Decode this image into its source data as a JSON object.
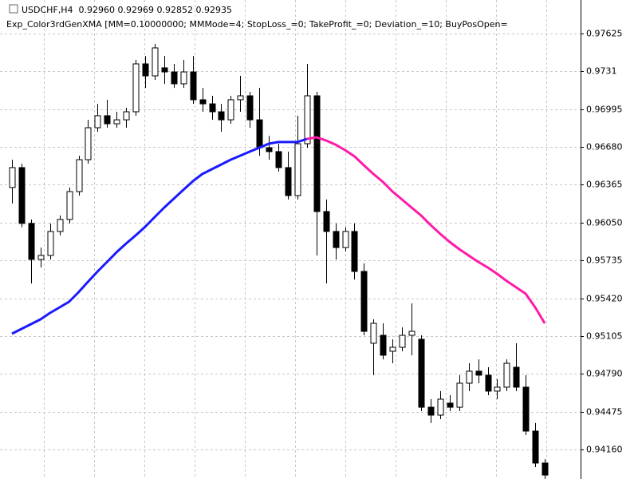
{
  "chart_data": {
    "type": "candlestick",
    "title": "USDCHF,H4  0.92960 0.92969 0.92852 0.92935",
    "subtitle": "Exp_Color3rdGenXMA [MM=0.10000000; MMMode=4; StopLoss_=0; TakeProfit_=0; Deviation_=10; BuyPosOpen=",
    "categories": [
      null,
      null,
      null,
      null,
      null,
      null,
      null,
      null,
      null,
      null,
      null,
      null,
      null,
      null,
      null,
      null,
      null,
      null,
      null,
      null,
      null,
      null,
      null,
      null,
      null,
      null,
      null,
      null,
      null,
      null,
      null,
      null,
      null,
      null,
      null,
      null,
      null,
      null,
      null,
      null,
      null,
      null,
      null,
      null,
      null,
      null,
      null,
      null,
      null,
      null,
      null,
      null,
      null,
      null,
      null,
      null,
      null
    ],
    "open": [
      0.96342,
      0.96508,
      0.96043,
      0.95743,
      0.95776,
      0.95976,
      0.96076,
      0.96308,
      0.96574,
      0.9684,
      0.9694,
      0.96873,
      0.96906,
      0.96973,
      0.97372,
      0.97272,
      0.97339,
      0.97305,
      0.97206,
      0.97305,
      0.97073,
      0.97039,
      0.96973,
      0.96906,
      0.97073,
      0.97106,
      0.96906,
      0.96674,
      0.96641,
      0.96508,
      0.96275,
      0.96707,
      0.97106,
      0.96142,
      0.95976,
      0.95842,
      0.95976,
      0.95643,
      0.95045,
      0.95111,
      0.94978,
      0.95011,
      0.95111,
      0.95078,
      0.94512,
      0.94446,
      0.94546,
      0.94512,
      0.94712,
      0.94812,
      0.94779,
      0.94646,
      0.94679,
      0.94845,
      0.94679,
      0.94313,
      0.94047
    ],
    "high": [
      0.96574,
      0.96541,
      0.96076,
      0.95842,
      0.96043,
      0.96109,
      0.96342,
      0.96607,
      0.96906,
      0.97039,
      0.97073,
      0.96973,
      0.97006,
      0.97405,
      0.97438,
      0.97538,
      0.97438,
      0.97372,
      0.97405,
      0.97438,
      0.97172,
      0.97106,
      0.97039,
      0.97106,
      0.97272,
      0.97139,
      0.97172,
      0.96773,
      0.96707,
      0.96641,
      0.9694,
      0.97372,
      0.97139,
      0.96242,
      0.96043,
      0.9601,
      0.96043,
      0.9571,
      0.95244,
      0.95211,
      0.95078,
      0.95177,
      0.95377,
      0.95111,
      0.94579,
      0.94646,
      0.94612,
      0.94779,
      0.94878,
      0.94911,
      0.94845,
      0.94745,
      0.94911,
      0.95045,
      0.94779,
      0.9438,
      0.9408
    ],
    "low": [
      0.96209,
      0.9601,
      0.95543,
      0.95676,
      0.95743,
      0.95943,
      0.96043,
      0.96275,
      0.96541,
      0.96807,
      0.9684,
      0.9684,
      0.9684,
      0.9694,
      0.97172,
      0.97239,
      0.97206,
      0.97172,
      0.97172,
      0.97039,
      0.96973,
      0.96906,
      0.96807,
      0.96873,
      0.96973,
      0.9684,
      0.96607,
      0.96574,
      0.96475,
      0.96242,
      0.96242,
      0.96674,
      0.95776,
      0.95543,
      0.95743,
      0.95809,
      0.95576,
      0.95111,
      0.94779,
      0.94911,
      0.94878,
      0.94978,
      0.94945,
      0.94479,
      0.9438,
      0.94413,
      0.94479,
      0.94479,
      0.94646,
      0.94712,
      0.94612,
      0.94579,
      0.94646,
      0.94646,
      0.9428,
      0.94014,
      0.93914
    ],
    "close": [
      0.96508,
      0.96043,
      0.95743,
      0.95776,
      0.95976,
      0.96076,
      0.96308,
      0.96574,
      0.9684,
      0.9694,
      0.96873,
      0.96906,
      0.96973,
      0.97372,
      0.97272,
      0.97505,
      0.97305,
      0.97206,
      0.97305,
      0.97073,
      0.97039,
      0.96973,
      0.96906,
      0.97073,
      0.97106,
      0.96906,
      0.96674,
      0.96641,
      0.96508,
      0.96275,
      0.96707,
      0.97106,
      0.96142,
      0.95976,
      0.95842,
      0.95976,
      0.95643,
      0.95144,
      0.95211,
      0.94945,
      0.95011,
      0.95111,
      0.95144,
      0.94512,
      0.94446,
      0.94579,
      0.94512,
      0.94712,
      0.94812,
      0.94779,
      0.94646,
      0.94679,
      0.94878,
      0.94679,
      0.94313,
      0.94047,
      0.93947
    ],
    "series": [
      {
        "color": "#1a1aff",
        "values": [
          0.95124,
          0.95164,
          0.95204,
          0.95244,
          0.95297,
          0.95344,
          0.9539,
          0.9547,
          0.95557,
          0.95643,
          0.95723,
          0.95803,
          0.95876,
          0.95943,
          0.96015,
          0.96095,
          0.96175,
          0.96248,
          0.96321,
          0.96394,
          0.96454,
          0.96494,
          0.96534,
          0.96574,
          0.96607,
          0.96641,
          0.96674,
          0.96707,
          0.96721,
          0.96721,
          0.96721,
          0.96747,
          null,
          null,
          null,
          null,
          null,
          null,
          null,
          null,
          null,
          null,
          null,
          null,
          null,
          null,
          null,
          null,
          null,
          null,
          null,
          null,
          null,
          null,
          null,
          null,
          null
        ]
      },
      {
        "color": "#ff1aa8",
        "values": [
          null,
          null,
          null,
          null,
          null,
          null,
          null,
          null,
          null,
          null,
          null,
          null,
          null,
          null,
          null,
          null,
          null,
          null,
          null,
          null,
          null,
          null,
          null,
          null,
          null,
          null,
          null,
          null,
          null,
          null,
          null,
          0.96747,
          0.9676,
          0.96734,
          0.967,
          0.96654,
          0.96601,
          0.96527,
          0.96454,
          0.96388,
          0.96308,
          0.96242,
          0.96175,
          0.96109,
          0.9603,
          0.95956,
          0.95889,
          0.95829,
          0.95776,
          0.95723,
          0.95676,
          0.95623,
          0.95563,
          0.9551,
          0.95457,
          0.95344,
          0.95211
        ]
      }
    ],
    "ylim": [
      0.93914,
      0.97904
    ],
    "yticks": [
      0.97625,
      0.9731,
      0.96995,
      {
        "value": 0.9668,
        "label": "0.96680"
      },
      0.96365,
      {
        "value": 0.9605,
        "label": "0.96050"
      },
      0.95735,
      {
        "value": 0.9542,
        "label": "0.95420"
      },
      0.95105,
      {
        "value": 0.9479,
        "label": "0.94790"
      },
      0.94475,
      {
        "value": 0.9416,
        "label": "0.94160"
      }
    ],
    "grid": true,
    "bull_color": "#ffffff",
    "bear_color": "#000000"
  }
}
